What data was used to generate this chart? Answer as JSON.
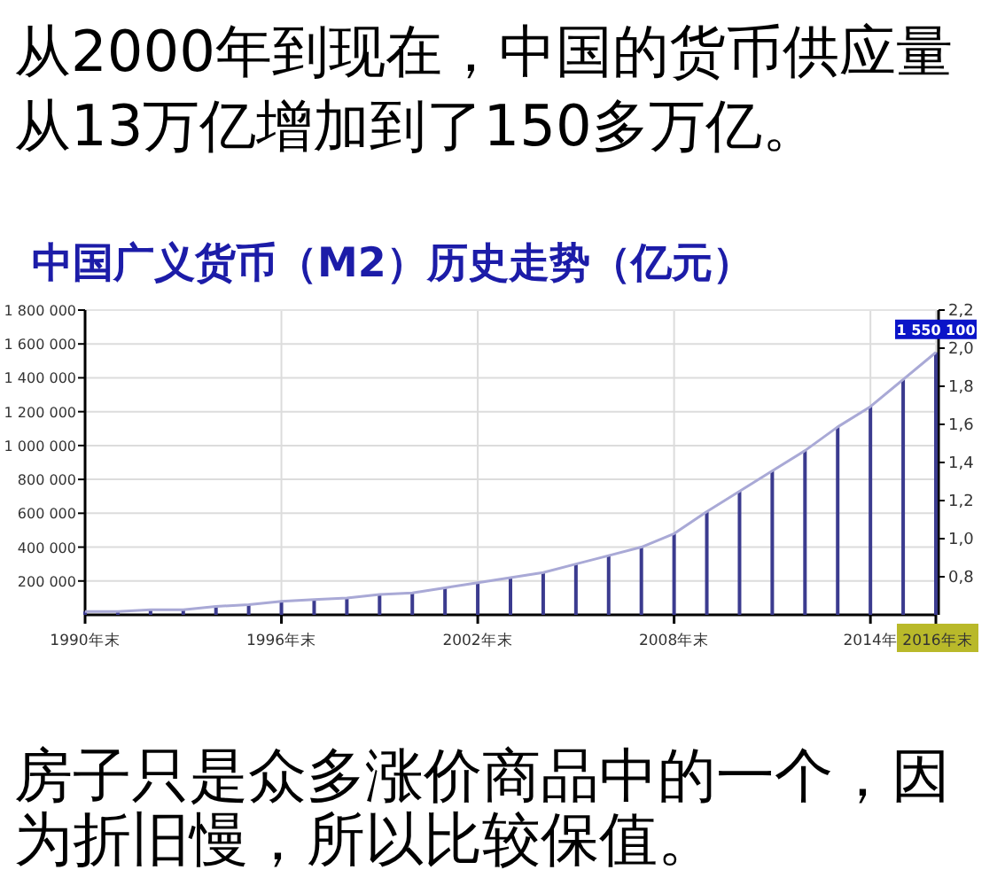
{
  "chart_data": {
    "type": "bar",
    "title": "从2000年到现在，中国的货币供应量从13万亿增加到了150多万亿。",
    "subtitle": "中国广义货币（M2）历史走势（亿元）",
    "annotations": [
      "房子只是众多涨价商品中的一个，因为折旧慢，所以比较保值。"
    ],
    "x": [
      1990,
      1991,
      1992,
      1993,
      1994,
      1995,
      1996,
      1997,
      1998,
      1999,
      2000,
      2001,
      2002,
      2003,
      2004,
      2005,
      2006,
      2007,
      2008,
      2009,
      2010,
      2011,
      2012,
      2013,
      2014,
      2015,
      2016
    ],
    "series": [
      {
        "color": "#3b3b8f",
        "values": [
          20000,
          20000,
          30000,
          30000,
          50000,
          60000,
          80000,
          90000,
          100000,
          120000,
          130000,
          160000,
          190000,
          220000,
          250000,
          300000,
          350000,
          400000,
          480000,
          610000,
          730000,
          850000,
          970000,
          1110000,
          1230000,
          1390000,
          1550100
        ],
        "value_labels": [
          null,
          null,
          null,
          null,
          null,
          null,
          null,
          null,
          null,
          null,
          null,
          null,
          null,
          null,
          null,
          null,
          null,
          null,
          null,
          null,
          null,
          null,
          null,
          null,
          null,
          null,
          "1 550 100"
        ]
      },
      {
        "type": "line",
        "color": "#a9a9d6",
        "values": [
          20000,
          20000,
          30000,
          30000,
          50000,
          60000,
          80000,
          90000,
          100000,
          120000,
          130000,
          160000,
          190000,
          220000,
          250000,
          300000,
          350000,
          400000,
          480000,
          610000,
          730000,
          850000,
          970000,
          1110000,
          1230000,
          1390000,
          1550100
        ]
      }
    ],
    "xlim": [
      1990,
      2016
    ],
    "xticks": [
      {
        "value": 1990,
        "label": "1990年末"
      },
      {
        "value": 1996,
        "label": "1996年末"
      },
      {
        "value": 2002,
        "label": "2002年末"
      },
      {
        "value": 2008,
        "label": "2008年末"
      },
      {
        "value": 2014,
        "label": "2014年"
      },
      {
        "value": 2016,
        "label": "2016年末"
      }
    ],
    "ylim": [
      0,
      1800000
    ],
    "yticks": [
      {
        "value": 200000,
        "label": "200 000"
      },
      {
        "value": 400000,
        "label": "400 000"
      },
      {
        "value": 600000,
        "label": "600 000"
      },
      {
        "value": 800000,
        "label": "800 000"
      },
      {
        "value": 1000000,
        "label": "1 000 000"
      },
      {
        "value": 1200000,
        "label": "1 200 000"
      },
      {
        "value": 1400000,
        "label": "1 400 000"
      },
      {
        "value": 1600000,
        "label": "1 600 000"
      },
      {
        "value": 1800000,
        "label": "1 800 000"
      }
    ],
    "y2lim": [
      0.6,
      2.2
    ],
    "y2ticks": [
      {
        "value": 0.8,
        "label": "0,8"
      },
      {
        "value": 1.0,
        "label": "1,0"
      },
      {
        "value": 1.2,
        "label": "1,2"
      },
      {
        "value": 1.4,
        "label": "1,4"
      },
      {
        "value": 1.6,
        "label": "1,6"
      },
      {
        "value": 1.8,
        "label": "1,8"
      },
      {
        "value": 2.0,
        "label": "2,0"
      },
      {
        "value": 2.2,
        "label": "2,2"
      }
    ],
    "grid": true
  }
}
